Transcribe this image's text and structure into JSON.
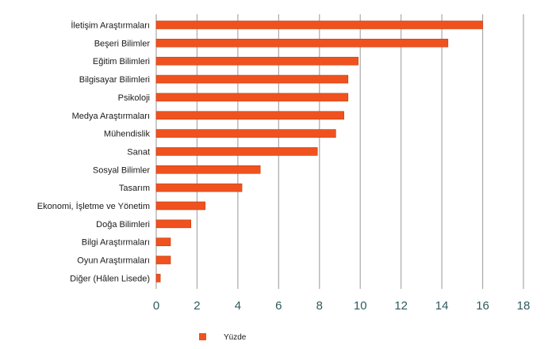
{
  "chart_data": {
    "type": "bar",
    "orientation": "horizontal",
    "categories": [
      "İletişim Araştırmaları",
      "Beşeri Bilimler",
      "Eğitim Bilimleri",
      "Bilgisayar Bilimleri",
      "Psikoloji",
      "Medya Araştırmaları",
      "Mühendislik",
      "Sanat",
      "Sosyal Bilimler",
      "Tasarım",
      "Ekonomi, İşletme ve Yönetim",
      "Doğa Bilimleri",
      "Bilgi Araştırmaları",
      "Oyun Araştırmaları",
      "Diğer (Hâlen Lisede)"
    ],
    "series": [
      {
        "name": "Yüzde",
        "color": "#f0521f",
        "values": [
          16.0,
          14.3,
          9.9,
          9.4,
          9.4,
          9.2,
          8.8,
          7.9,
          5.1,
          4.2,
          2.4,
          1.7,
          0.7,
          0.7,
          0.2
        ]
      }
    ],
    "xlim": [
      0,
      18
    ],
    "xticks": [
      0,
      2,
      4,
      6,
      8,
      10,
      12,
      14,
      16,
      18
    ],
    "grid": true,
    "legend_position": "bottom-left",
    "title": "",
    "xlabel": "",
    "ylabel": ""
  },
  "colors": {
    "bar": "#f0521f",
    "bar_edge": "#c43d10",
    "grid": "#a8a8a8",
    "tick_text": "#2e5a5e"
  }
}
